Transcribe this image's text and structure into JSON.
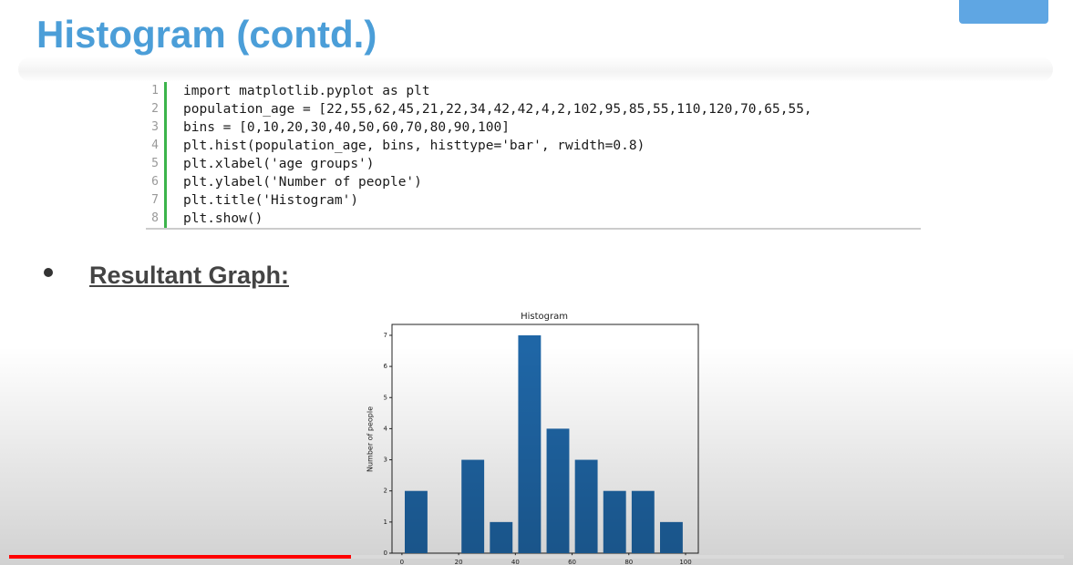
{
  "slide": {
    "title": "Histogram (contd.)",
    "code": [
      {
        "number": "1",
        "text": "import matplotlib.pyplot as plt"
      },
      {
        "number": "2",
        "text": "population_age = [22,55,62,45,21,22,34,42,42,4,2,102,95,85,55,110,120,70,65,55,"
      },
      {
        "number": "3",
        "text": "bins = [0,10,20,30,40,50,60,70,80,90,100]"
      },
      {
        "number": "4",
        "text": "plt.hist(population_age, bins, histtype='bar', rwidth=0.8)"
      },
      {
        "number": "5",
        "text": "plt.xlabel('age groups')"
      },
      {
        "number": "6",
        "text": "plt.ylabel('Number of people')"
      },
      {
        "number": "7",
        "text": "plt.title('Histogram')"
      },
      {
        "number": "8",
        "text": "plt.show()"
      }
    ],
    "bullet": "Resultant Graph:"
  },
  "chart_data": {
    "type": "histogram",
    "title": "Histogram",
    "y_label": "Number of people",
    "bins": [
      0,
      10,
      20,
      30,
      40,
      50,
      60,
      70,
      80,
      90,
      100
    ],
    "values": [
      2,
      0,
      3,
      1,
      7,
      4,
      3,
      2,
      2,
      1
    ],
    "rwidth": 0.8,
    "color": "#1f66a6",
    "xlim": [
      -3.5,
      104.5
    ],
    "ylim": [
      0,
      7.35
    ],
    "xticks": [
      0,
      20,
      40,
      60,
      80,
      100
    ],
    "yticks": [
      0,
      1,
      2,
      3,
      4,
      5,
      6,
      7
    ]
  }
}
